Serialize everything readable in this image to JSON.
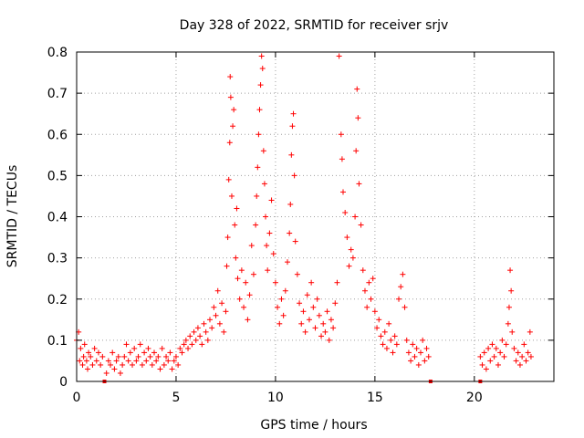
{
  "chart_data": {
    "type": "scatter",
    "title": "Day 328 of 2022, SRMTID for receiver srjv",
    "xlabel": "GPS time / hours",
    "ylabel": "SRMTID / TECUs",
    "xlim": [
      0,
      24
    ],
    "ylim": [
      0,
      0.8
    ],
    "xticks": [
      "0",
      "5",
      "10",
      "15",
      "20"
    ],
    "yticks": [
      "0",
      "0.1",
      "0.2",
      "0.3",
      "0.4",
      "0.5",
      "0.6",
      "0.7",
      "0.8"
    ],
    "grid": true,
    "marker": "plus",
    "color": "#ff0000",
    "gap_markers_x": [
      1.4,
      17.8,
      20.3
    ],
    "series": [
      {
        "name": "SRMTID",
        "points": [
          [
            0.0,
            0.1
          ],
          [
            0.1,
            0.12
          ],
          [
            0.15,
            0.05
          ],
          [
            0.2,
            0.08
          ],
          [
            0.3,
            0.04
          ],
          [
            0.35,
            0.06
          ],
          [
            0.4,
            0.09
          ],
          [
            0.5,
            0.05
          ],
          [
            0.55,
            0.03
          ],
          [
            0.6,
            0.07
          ],
          [
            0.7,
            0.06
          ],
          [
            0.8,
            0.04
          ],
          [
            0.9,
            0.08
          ],
          [
            1.0,
            0.05
          ],
          [
            1.1,
            0.07
          ],
          [
            1.2,
            0.04
          ],
          [
            1.3,
            0.06
          ],
          [
            1.5,
            0.02
          ],
          [
            1.6,
            0.05
          ],
          [
            1.7,
            0.04
          ],
          [
            1.8,
            0.07
          ],
          [
            1.9,
            0.03
          ],
          [
            2.0,
            0.05
          ],
          [
            2.1,
            0.06
          ],
          [
            2.2,
            0.02
          ],
          [
            2.3,
            0.04
          ],
          [
            2.4,
            0.06
          ],
          [
            2.5,
            0.09
          ],
          [
            2.6,
            0.05
          ],
          [
            2.7,
            0.07
          ],
          [
            2.8,
            0.04
          ],
          [
            2.9,
            0.08
          ],
          [
            3.0,
            0.05
          ],
          [
            3.1,
            0.06
          ],
          [
            3.2,
            0.09
          ],
          [
            3.3,
            0.04
          ],
          [
            3.4,
            0.07
          ],
          [
            3.5,
            0.05
          ],
          [
            3.6,
            0.08
          ],
          [
            3.7,
            0.06
          ],
          [
            3.8,
            0.04
          ],
          [
            3.9,
            0.07
          ],
          [
            4.0,
            0.05
          ],
          [
            4.1,
            0.06
          ],
          [
            4.2,
            0.03
          ],
          [
            4.3,
            0.08
          ],
          [
            4.4,
            0.04
          ],
          [
            4.5,
            0.06
          ],
          [
            4.6,
            0.05
          ],
          [
            4.7,
            0.07
          ],
          [
            4.8,
            0.03
          ],
          [
            4.9,
            0.05
          ],
          [
            5.0,
            0.06
          ],
          [
            5.1,
            0.04
          ],
          [
            5.2,
            0.08
          ],
          [
            5.3,
            0.07
          ],
          [
            5.4,
            0.09
          ],
          [
            5.5,
            0.1
          ],
          [
            5.6,
            0.08
          ],
          [
            5.7,
            0.11
          ],
          [
            5.8,
            0.09
          ],
          [
            5.9,
            0.12
          ],
          [
            6.0,
            0.1
          ],
          [
            6.1,
            0.13
          ],
          [
            6.2,
            0.11
          ],
          [
            6.3,
            0.09
          ],
          [
            6.4,
            0.14
          ],
          [
            6.5,
            0.12
          ],
          [
            6.6,
            0.1
          ],
          [
            6.7,
            0.15
          ],
          [
            6.8,
            0.13
          ],
          [
            6.9,
            0.18
          ],
          [
            7.0,
            0.16
          ],
          [
            7.1,
            0.22
          ],
          [
            7.2,
            0.14
          ],
          [
            7.3,
            0.19
          ],
          [
            7.4,
            0.12
          ],
          [
            7.5,
            0.17
          ],
          [
            7.55,
            0.28
          ],
          [
            7.6,
            0.35
          ],
          [
            7.65,
            0.49
          ],
          [
            7.7,
            0.58
          ],
          [
            7.72,
            0.74
          ],
          [
            7.75,
            0.69
          ],
          [
            7.8,
            0.45
          ],
          [
            7.85,
            0.62
          ],
          [
            7.9,
            0.66
          ],
          [
            7.95,
            0.38
          ],
          [
            8.0,
            0.3
          ],
          [
            8.05,
            0.42
          ],
          [
            8.1,
            0.25
          ],
          [
            8.2,
            0.2
          ],
          [
            8.3,
            0.27
          ],
          [
            8.4,
            0.18
          ],
          [
            8.5,
            0.24
          ],
          [
            8.6,
            0.15
          ],
          [
            8.7,
            0.21
          ],
          [
            8.8,
            0.33
          ],
          [
            8.9,
            0.26
          ],
          [
            9.0,
            0.38
          ],
          [
            9.05,
            0.45
          ],
          [
            9.1,
            0.52
          ],
          [
            9.15,
            0.6
          ],
          [
            9.2,
            0.66
          ],
          [
            9.25,
            0.72
          ],
          [
            9.3,
            0.79
          ],
          [
            9.35,
            0.76
          ],
          [
            9.4,
            0.56
          ],
          [
            9.45,
            0.48
          ],
          [
            9.5,
            0.4
          ],
          [
            9.55,
            0.33
          ],
          [
            9.6,
            0.27
          ],
          [
            9.7,
            0.36
          ],
          [
            9.8,
            0.44
          ],
          [
            9.9,
            0.31
          ],
          [
            10.0,
            0.24
          ],
          [
            10.1,
            0.18
          ],
          [
            10.2,
            0.14
          ],
          [
            10.3,
            0.2
          ],
          [
            10.4,
            0.16
          ],
          [
            10.5,
            0.22
          ],
          [
            10.6,
            0.29
          ],
          [
            10.7,
            0.36
          ],
          [
            10.75,
            0.43
          ],
          [
            10.8,
            0.55
          ],
          [
            10.85,
            0.62
          ],
          [
            10.9,
            0.65
          ],
          [
            10.95,
            0.5
          ],
          [
            11.0,
            0.34
          ],
          [
            11.1,
            0.26
          ],
          [
            11.2,
            0.19
          ],
          [
            11.3,
            0.14
          ],
          [
            11.4,
            0.17
          ],
          [
            11.5,
            0.12
          ],
          [
            11.6,
            0.21
          ],
          [
            11.7,
            0.15
          ],
          [
            11.8,
            0.24
          ],
          [
            11.9,
            0.18
          ],
          [
            12.0,
            0.13
          ],
          [
            12.1,
            0.2
          ],
          [
            12.2,
            0.16
          ],
          [
            12.3,
            0.11
          ],
          [
            12.4,
            0.14
          ],
          [
            12.5,
            0.12
          ],
          [
            12.6,
            0.17
          ],
          [
            12.7,
            0.1
          ],
          [
            12.8,
            0.15
          ],
          [
            12.9,
            0.13
          ],
          [
            13.0,
            0.19
          ],
          [
            13.1,
            0.24
          ],
          [
            13.2,
            0.79
          ],
          [
            13.3,
            0.6
          ],
          [
            13.35,
            0.54
          ],
          [
            13.4,
            0.46
          ],
          [
            13.5,
            0.41
          ],
          [
            13.6,
            0.35
          ],
          [
            13.7,
            0.28
          ],
          [
            13.8,
            0.32
          ],
          [
            13.9,
            0.3
          ],
          [
            14.0,
            0.4
          ],
          [
            14.05,
            0.56
          ],
          [
            14.1,
            0.71
          ],
          [
            14.15,
            0.64
          ],
          [
            14.2,
            0.48
          ],
          [
            14.3,
            0.38
          ],
          [
            14.4,
            0.27
          ],
          [
            14.5,
            0.22
          ],
          [
            14.6,
            0.18
          ],
          [
            14.7,
            0.24
          ],
          [
            14.8,
            0.2
          ],
          [
            14.9,
            0.25
          ],
          [
            15.0,
            0.17
          ],
          [
            15.1,
            0.13
          ],
          [
            15.2,
            0.15
          ],
          [
            15.3,
            0.11
          ],
          [
            15.4,
            0.09
          ],
          [
            15.5,
            0.12
          ],
          [
            15.6,
            0.08
          ],
          [
            15.7,
            0.14
          ],
          [
            15.8,
            0.1
          ],
          [
            15.9,
            0.07
          ],
          [
            16.0,
            0.11
          ],
          [
            16.1,
            0.09
          ],
          [
            16.2,
            0.2
          ],
          [
            16.3,
            0.23
          ],
          [
            16.4,
            0.26
          ],
          [
            16.5,
            0.18
          ],
          [
            16.6,
            0.1
          ],
          [
            16.7,
            0.07
          ],
          [
            16.8,
            0.05
          ],
          [
            16.9,
            0.09
          ],
          [
            17.0,
            0.06
          ],
          [
            17.1,
            0.08
          ],
          [
            17.2,
            0.04
          ],
          [
            17.3,
            0.07
          ],
          [
            17.4,
            0.1
          ],
          [
            17.5,
            0.05
          ],
          [
            17.6,
            0.08
          ],
          [
            17.7,
            0.06
          ],
          [
            20.3,
            0.06
          ],
          [
            20.4,
            0.04
          ],
          [
            20.5,
            0.07
          ],
          [
            20.6,
            0.03
          ],
          [
            20.7,
            0.08
          ],
          [
            20.8,
            0.05
          ],
          [
            20.9,
            0.09
          ],
          [
            21.0,
            0.06
          ],
          [
            21.1,
            0.08
          ],
          [
            21.2,
            0.04
          ],
          [
            21.3,
            0.07
          ],
          [
            21.4,
            0.1
          ],
          [
            21.5,
            0.06
          ],
          [
            21.6,
            0.09
          ],
          [
            21.7,
            0.14
          ],
          [
            21.75,
            0.18
          ],
          [
            21.8,
            0.27
          ],
          [
            21.85,
            0.22
          ],
          [
            21.9,
            0.12
          ],
          [
            22.0,
            0.08
          ],
          [
            22.1,
            0.05
          ],
          [
            22.2,
            0.07
          ],
          [
            22.3,
            0.04
          ],
          [
            22.4,
            0.06
          ],
          [
            22.5,
            0.09
          ],
          [
            22.6,
            0.05
          ],
          [
            22.7,
            0.07
          ],
          [
            22.8,
            0.12
          ],
          [
            22.85,
            0.06
          ]
        ]
      }
    ]
  }
}
